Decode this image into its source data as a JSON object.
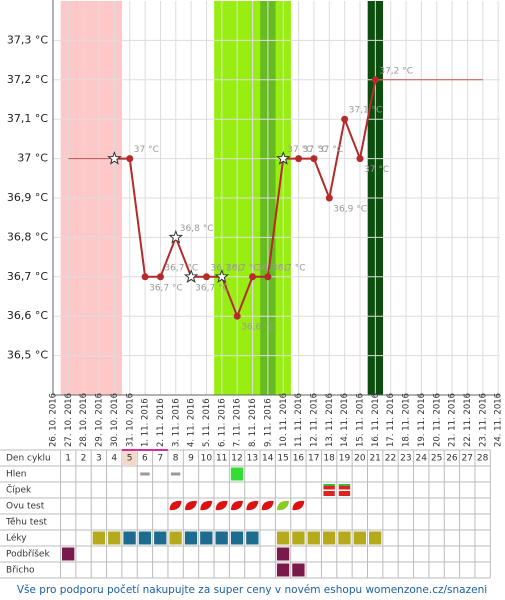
{
  "chart_data": {
    "type": "line",
    "x": [
      "26. 10. 2016",
      "27. 10. 2016",
      "28. 10. 2016",
      "29. 10. 2016",
      "30. 10. 2016",
      "31. 10. 2016",
      "1. 11. 2016",
      "2. 11. 2016",
      "3. 11. 2016",
      "4. 11. 2016",
      "5. 11. 2016",
      "6. 11. 2016",
      "7. 11. 2016",
      "8. 11. 2016",
      "9. 11. 2016",
      "10. 11. 2016",
      "11. 11. 2016",
      "12. 11. 2016",
      "13. 11. 2016",
      "14. 11. 2016",
      "15. 11. 2016",
      "16. 11. 2016",
      "17. 11. 2016",
      "18. 11. 2016",
      "19. 11. 2016",
      "20. 11. 2016",
      "21. 11. 2016",
      "22. 11. 2016",
      "23. 11. 2016",
      "24. 11. 2016"
    ],
    "values": [
      null,
      null,
      null,
      null,
      37.0,
      37.0,
      36.7,
      36.7,
      36.8,
      36.7,
      36.7,
      36.7,
      36.6,
      36.7,
      36.7,
      37.0,
      37.0,
      37.0,
      36.9,
      37.1,
      37.0,
      37.2,
      null,
      null,
      null,
      null,
      null,
      null,
      null,
      null
    ],
    "value_labels": [
      null,
      null,
      null,
      null,
      null,
      "37 °C",
      "36,7 °C",
      "36,7 °C",
      "36,8 °C",
      "36,7 °C",
      "36,7 °C",
      "36,7 °C",
      "36,6 °C",
      "36,7 °C",
      "36,7 °C",
      "37 °C",
      "37 °C",
      "37 °C",
      "36,9 °C",
      "37,1 °C",
      "37 °C",
      "37,2 °C",
      null,
      null,
      null,
      null,
      null,
      null,
      null,
      null
    ],
    "point_shapes": [
      null,
      null,
      null,
      null,
      "star",
      "dot",
      "dot",
      "dot",
      "star",
      "star",
      "dot",
      "star",
      "dot",
      "dot",
      "dot",
      "star",
      "dot",
      "dot",
      "dot",
      "dot",
      "dot",
      "dot",
      null,
      null,
      null,
      null,
      null,
      null,
      null,
      null
    ],
    "color": "#b52a2a",
    "ylim": [
      36.4,
      37.4
    ],
    "yticks": [
      {
        "value": 36.5,
        "label": "36,5 °C"
      },
      {
        "value": 36.6,
        "label": "36,6 °C"
      },
      {
        "value": 36.7,
        "label": "36,7 °C"
      },
      {
        "value": 36.8,
        "label": "36,8 °C"
      },
      {
        "value": 36.9,
        "label": "36,9 °C"
      },
      {
        "value": 37,
        "label": "37 °C"
      },
      {
        "value": 37.1,
        "label": "37,1 °C"
      },
      {
        "value": 37.2,
        "label": "37,2 °C"
      },
      {
        "value": 37.3,
        "label": "37,3 °C"
      }
    ],
    "grid": true,
    "extensions": [
      {
        "from": "27. 10. 2016",
        "to": "30. 10. 2016",
        "value": 37.0
      },
      {
        "from": "16. 11. 2016",
        "to": "23. 11. 2016",
        "value": 37.2
      }
    ],
    "bands": [
      {
        "from": "27. 10. 2016",
        "to": "30. 10. 2016",
        "color": "#ffc8c8"
      },
      {
        "from": "6. 11. 2016",
        "to": "10. 11. 2016",
        "color": "#99ee11"
      },
      {
        "from": "9. 11. 2016",
        "to": "9. 11. 2016",
        "color": "#66bb22"
      },
      {
        "from": "16. 11. 2016",
        "to": "16. 11. 2016",
        "color": "#0d4d0d"
      }
    ]
  },
  "table": {
    "header_label": "Den cyklu",
    "days": [
      1,
      2,
      3,
      4,
      5,
      6,
      7,
      8,
      9,
      10,
      11,
      12,
      13,
      14,
      15,
      16,
      17,
      18,
      19,
      20,
      21,
      22,
      23,
      24,
      25,
      26,
      27,
      28
    ],
    "highlight_days": [
      5,
      6,
      7
    ],
    "rows": [
      {
        "label": "Hlen",
        "shape": "square",
        "marks": [
          {
            "day": 6,
            "color": "#999999"
          },
          {
            "day": 8,
            "color": "#999999"
          },
          {
            "day": 12,
            "color": "#33dd33"
          }
        ]
      },
      {
        "label": "Čípek",
        "shape": "cervix",
        "marks": [
          {
            "day": 18,
            "color": "#dd2222"
          },
          {
            "day": 19,
            "color": "#dd2222"
          }
        ]
      },
      {
        "label": "Ovu test",
        "shape": "leaf",
        "marks": [
          {
            "day": 8,
            "color": "#dd1111"
          },
          {
            "day": 9,
            "color": "#dd1111"
          },
          {
            "day": 10,
            "color": "#dd1111"
          },
          {
            "day": 11,
            "color": "#dd1111"
          },
          {
            "day": 12,
            "color": "#dd1111"
          },
          {
            "day": 13,
            "color": "#dd1111"
          },
          {
            "day": 14,
            "color": "#dd1111"
          },
          {
            "day": 15,
            "color": "#88cc22"
          },
          {
            "day": 16,
            "color": "#dd1111"
          }
        ]
      },
      {
        "label": "Těhu test",
        "shape": "square",
        "marks": []
      },
      {
        "label": "Léky",
        "shape": "square",
        "marks": [
          {
            "day": 3,
            "color": "#b5a91c"
          },
          {
            "day": 4,
            "color": "#b5a91c"
          },
          {
            "day": 5,
            "color": "#1d6b8f"
          },
          {
            "day": 6,
            "color": "#1d6b8f"
          },
          {
            "day": 7,
            "color": "#1d6b8f"
          },
          {
            "day": 8,
            "color": "#b5a91c"
          },
          {
            "day": 9,
            "color": "#1d6b8f"
          },
          {
            "day": 10,
            "color": "#1d6b8f"
          },
          {
            "day": 11,
            "color": "#1d6b8f"
          },
          {
            "day": 12,
            "color": "#1d6b8f"
          },
          {
            "day": 13,
            "color": "#1d6b8f"
          },
          {
            "day": 15,
            "color": "#b5a91c"
          },
          {
            "day": 16,
            "color": "#b5a91c"
          },
          {
            "day": 17,
            "color": "#b5a91c"
          },
          {
            "day": 18,
            "color": "#b5a91c"
          },
          {
            "day": 19,
            "color": "#b5a91c"
          },
          {
            "day": 20,
            "color": "#b5a91c"
          },
          {
            "day": 21,
            "color": "#b5a91c"
          }
        ]
      },
      {
        "label": "Podbříšek",
        "shape": "square",
        "marks": [
          {
            "day": 1,
            "color": "#7a1a4a"
          },
          {
            "day": 15,
            "color": "#7a1a4a"
          }
        ]
      },
      {
        "label": "Břicho",
        "shape": "square",
        "marks": [
          {
            "day": 15,
            "color": "#7a1a4a"
          },
          {
            "day": 16,
            "color": "#7a1a4a"
          }
        ]
      }
    ]
  },
  "footer": "Vše pro podporu početí nakupujte za super ceny v novém eshopu womenzone.cz/snazeni"
}
